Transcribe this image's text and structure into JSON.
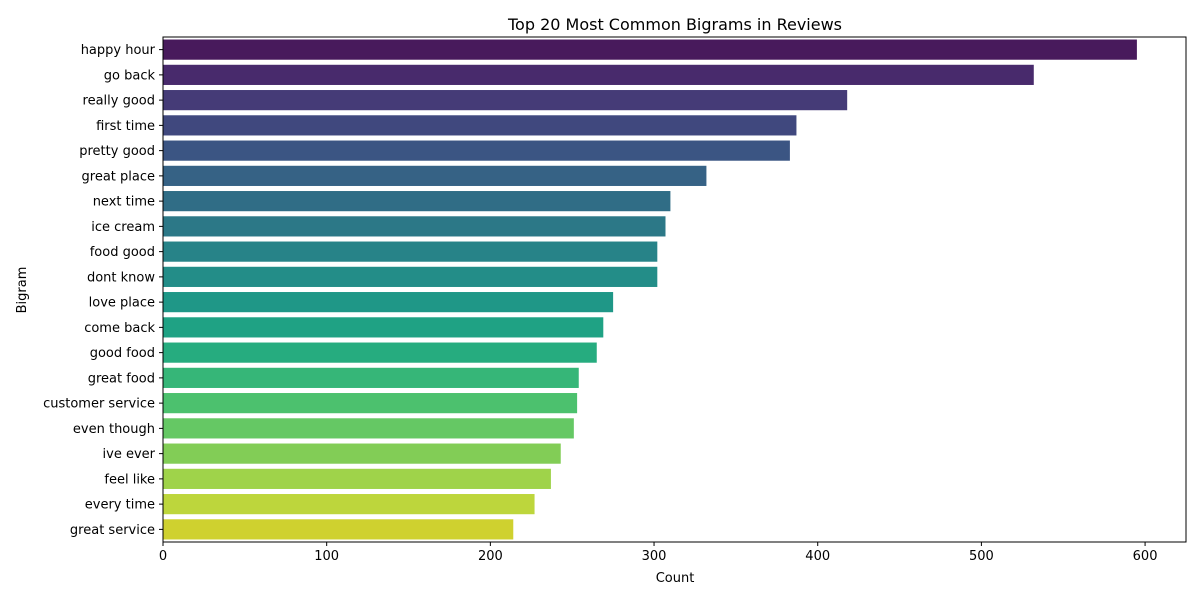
{
  "chart_data": {
    "type": "bar",
    "orientation": "horizontal",
    "title": "Top 20 Most Common Bigrams in Reviews",
    "xlabel": "Count",
    "ylabel": "Bigram",
    "xlim": [
      0,
      625
    ],
    "xticks": [
      0,
      100,
      200,
      300,
      400,
      500,
      600
    ],
    "grid": false,
    "categories": [
      "happy hour",
      "go back",
      "really good",
      "first time",
      "pretty good",
      "great place",
      "next time",
      "ice cream",
      "food good",
      "dont know",
      "love place",
      "come back",
      "good food",
      "great food",
      "customer service",
      "even though",
      "ive ever",
      "feel like",
      "every time",
      "great service"
    ],
    "values": [
      595,
      532,
      418,
      387,
      383,
      332,
      310,
      307,
      302,
      302,
      275,
      269,
      265,
      254,
      253,
      251,
      243,
      237,
      227,
      214
    ],
    "colors": [
      "#481a5c",
      "#482a6c",
      "#453b77",
      "#40487e",
      "#3b5583",
      "#366285",
      "#306d86",
      "#2c7887",
      "#278388",
      "#238d88",
      "#1f9787",
      "#1fa284",
      "#26ac7f",
      "#36b678",
      "#4cc16e",
      "#65c864",
      "#82cd56",
      "#9fd34a",
      "#bdd63c",
      "#cfd12f"
    ]
  }
}
